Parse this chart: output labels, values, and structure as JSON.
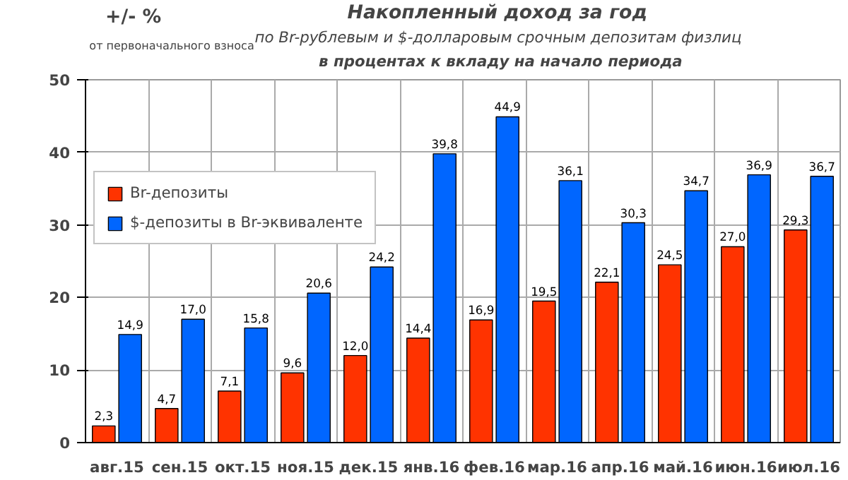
{
  "chart_data": {
    "type": "bar",
    "title": "Накопленный  доход за год",
    "subtitle": "по Br-рублевым и $-долларовым  срочным депозитам физлиц",
    "ylabel": "+/- %",
    "annotations": [
      "от первоначального взноса",
      "в процентах к вкладу на начало периода"
    ],
    "categories": [
      "авг.15",
      "сен.15",
      "окт.15",
      "ноя.15",
      "дек.15",
      "янв.16",
      "фев.16",
      "мар.16",
      "апр.16",
      "май.16",
      "июн.16",
      "июл.16"
    ],
    "series": [
      {
        "name": "Br-депозиты",
        "color": "#ff3300",
        "values": [
          2.3,
          4.7,
          7.1,
          9.6,
          12.0,
          14.4,
          16.9,
          19.5,
          22.1,
          24.5,
          27.0,
          29.3
        ],
        "value_labels": [
          "2,3",
          "4,7",
          "7,1",
          "9,6",
          "12,0",
          "14,4",
          "16,9",
          "19,5",
          "22,1",
          "24,5",
          "27,0",
          "29,3"
        ]
      },
      {
        "name": "$-депозиты в Br-эквиваленте",
        "color": "#0066ff",
        "values": [
          14.9,
          17.0,
          15.8,
          20.6,
          24.2,
          39.8,
          44.9,
          36.1,
          30.3,
          34.7,
          36.9,
          36.7
        ],
        "value_labels": [
          "14,9",
          "17,0",
          "15,8",
          "20,6",
          "24,2",
          "39,8",
          "44,9",
          "36,1",
          "30,3",
          "34,7",
          "36,9",
          "36,7"
        ]
      }
    ],
    "ylim": [
      0,
      50
    ],
    "yticks": [
      0,
      10,
      20,
      30,
      40,
      50
    ],
    "grid": true,
    "legend": "top left"
  }
}
